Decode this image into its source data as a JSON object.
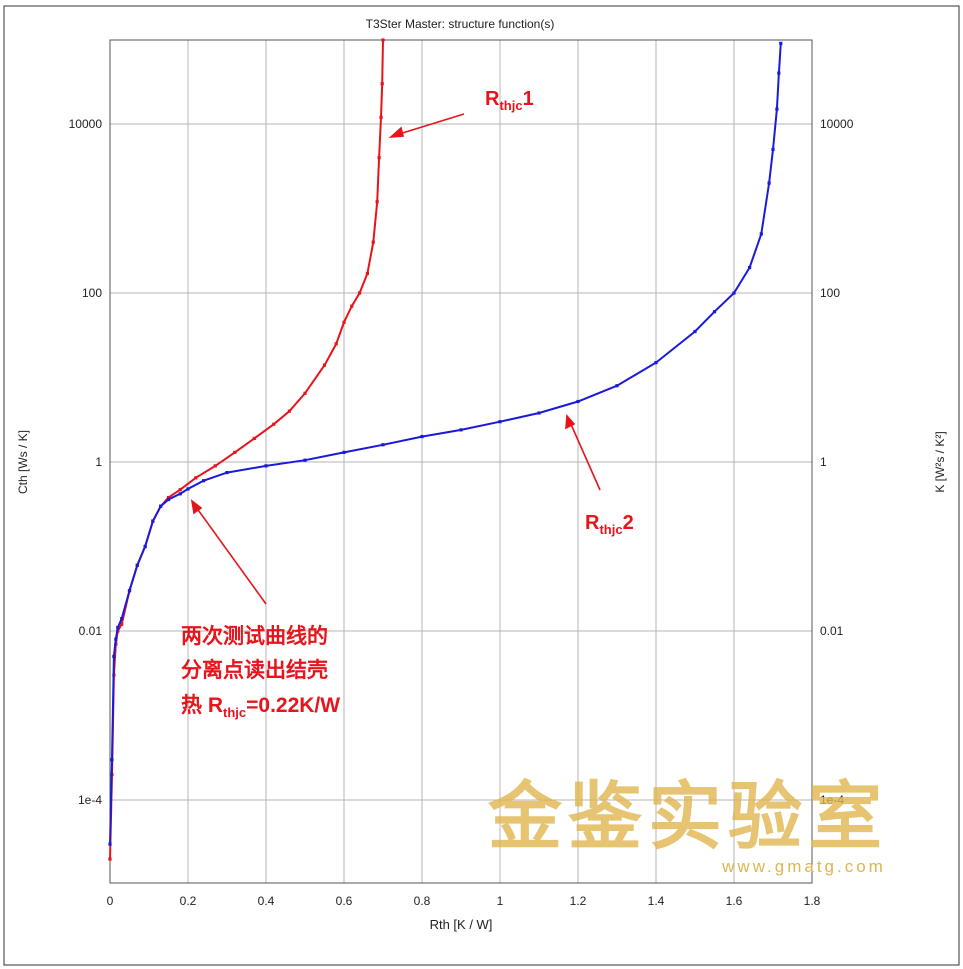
{
  "chart_data": {
    "type": "line",
    "title": "T3Ster Master: structure function(s)",
    "xlabel": "Rth  [K / W]",
    "ylabel_left": "Cth  [Ws / K]",
    "ylabel_right": "K  [W²s / K²]",
    "x_scale": "linear",
    "y_scale": "log",
    "xlim": [
      0,
      1.8
    ],
    "ylim": [
      2e-05,
      100000
    ],
    "grid": true,
    "x_ticks": [
      0,
      0.2,
      0.4,
      0.6,
      0.8,
      1,
      1.2,
      1.4,
      1.6,
      1.8
    ],
    "x_tick_labels": [
      "0",
      "0.2",
      "0.4",
      "0.6",
      "0.8",
      "1",
      "1.2",
      "1.4",
      "1.6",
      "1.8"
    ],
    "y_ticks": [
      0.0001,
      0.01,
      1,
      100,
      10000
    ],
    "y_tick_labels": [
      "1e-4",
      "0.01",
      "1",
      "100",
      "10000"
    ],
    "series": [
      {
        "name": "Rthjc1",
        "color": "#e8141b",
        "x": [
          0.0,
          0.005,
          0.01,
          0.015,
          0.02,
          0.03,
          0.05,
          0.07,
          0.09,
          0.11,
          0.13,
          0.15,
          0.18,
          0.22,
          0.27,
          0.32,
          0.37,
          0.42,
          0.46,
          0.5,
          0.55,
          0.58,
          0.6,
          0.62,
          0.64,
          0.66,
          0.675,
          0.685,
          0.69,
          0.695,
          0.698,
          0.7
        ],
        "y": [
          2e-05,
          0.0002,
          0.003,
          0.007,
          0.01,
          0.012,
          0.03,
          0.06,
          0.1,
          0.2,
          0.3,
          0.38,
          0.47,
          0.65,
          0.9,
          1.3,
          1.9,
          2.8,
          4,
          6.5,
          14,
          25,
          45,
          70,
          100,
          170,
          400,
          1200,
          4000,
          12000,
          30000,
          100000
        ]
      },
      {
        "name": "Rthjc2",
        "color": "#1a1ad8",
        "x": [
          0.0,
          0.005,
          0.01,
          0.015,
          0.02,
          0.03,
          0.05,
          0.07,
          0.09,
          0.11,
          0.13,
          0.15,
          0.18,
          0.2,
          0.24,
          0.3,
          0.4,
          0.5,
          0.6,
          0.7,
          0.8,
          0.9,
          1.0,
          1.1,
          1.2,
          1.3,
          1.4,
          1.5,
          1.55,
          1.6,
          1.64,
          1.67,
          1.69,
          1.7,
          1.71,
          1.715,
          1.72
        ],
        "y": [
          3e-05,
          0.0003,
          0.005,
          0.008,
          0.011,
          0.014,
          0.03,
          0.06,
          0.1,
          0.2,
          0.3,
          0.36,
          0.42,
          0.48,
          0.6,
          0.75,
          0.9,
          1.05,
          1.3,
          1.6,
          2.0,
          2.4,
          3.0,
          3.8,
          5.2,
          8,
          15,
          35,
          60,
          100,
          200,
          500,
          2000,
          5000,
          15000,
          40000,
          90000
        ]
      }
    ],
    "annotations": [
      {
        "label": "R",
        "subscript": "thjc",
        "suffix": "1",
        "color": "#e8141b"
      },
      {
        "label": "R",
        "subscript": "thjc",
        "suffix": "2",
        "color": "#e8141b"
      },
      {
        "lines": [
          "两次测试曲线的",
          "分离点读出结壳"
        ],
        "last_prefix": "热 R",
        "last_subscript": "thjc",
        "last_suffix": "=0.22K/W",
        "color": "#e8141b"
      }
    ]
  },
  "watermark": {
    "text": "金鉴实验室",
    "url": "www.gmatg.com",
    "color": "#e0b54e"
  }
}
